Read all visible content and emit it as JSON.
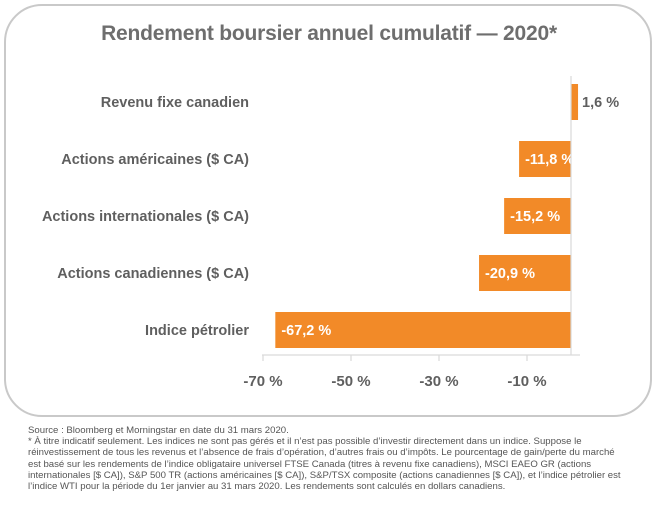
{
  "chart_data": {
    "type": "bar",
    "orientation": "horizontal",
    "title": "Rendement boursier annuel cumulatif — 2020*",
    "categories": [
      "Revenu fixe canadien",
      "Actions américaines ($ CA)",
      "Actions internationales ($ CA)",
      "Actions canadiennes ($ CA)",
      "Indice pétrolier"
    ],
    "values": [
      1.6,
      -11.8,
      -15.2,
      -20.9,
      -67.2
    ],
    "data_labels": [
      "1,6 %",
      "-11,8 %",
      "-15,2 %",
      "-20,9 %",
      "-67,2 %"
    ],
    "xticks": [
      -70,
      -50,
      -30,
      -10
    ],
    "xtick_labels": [
      "-70 %",
      "-50 %",
      "-30 %",
      "-10 %"
    ],
    "xlim": [
      -70,
      2
    ],
    "grid": false,
    "legend": "none",
    "bar_color": "#f28a28",
    "axis_color": "#d9d9d9",
    "label_color": "#5f5f5f"
  },
  "footnote": {
    "source": "Source : Bloomberg et Morningstar en date du 31 mars 2020.",
    "text": "* À titre indicatif seulement. Les indices ne sont pas gérés et il n’est pas possible d’investir directement dans un indice. Suppose le réinvestissement de tous les revenus et l’absence de frais d’opération, d’autres frais ou d’impôts. Le pourcentage de gain/perte du marché est basé sur les rendements de l’indice obligataire universel FTSE Canada (titres à revenu fixe canadiens), MSCI EAEO GR (actions internationales [$ CA]), S&P 500 TR (actions américaines [$ CA]), S&P/TSX composite (actions canadiennes [$ CA]), et l’indice pétrolier est l’indice WTI pour la période du 1er janvier au 31 mars 2020. Les rendements sont calculés en dollars canadiens."
  }
}
